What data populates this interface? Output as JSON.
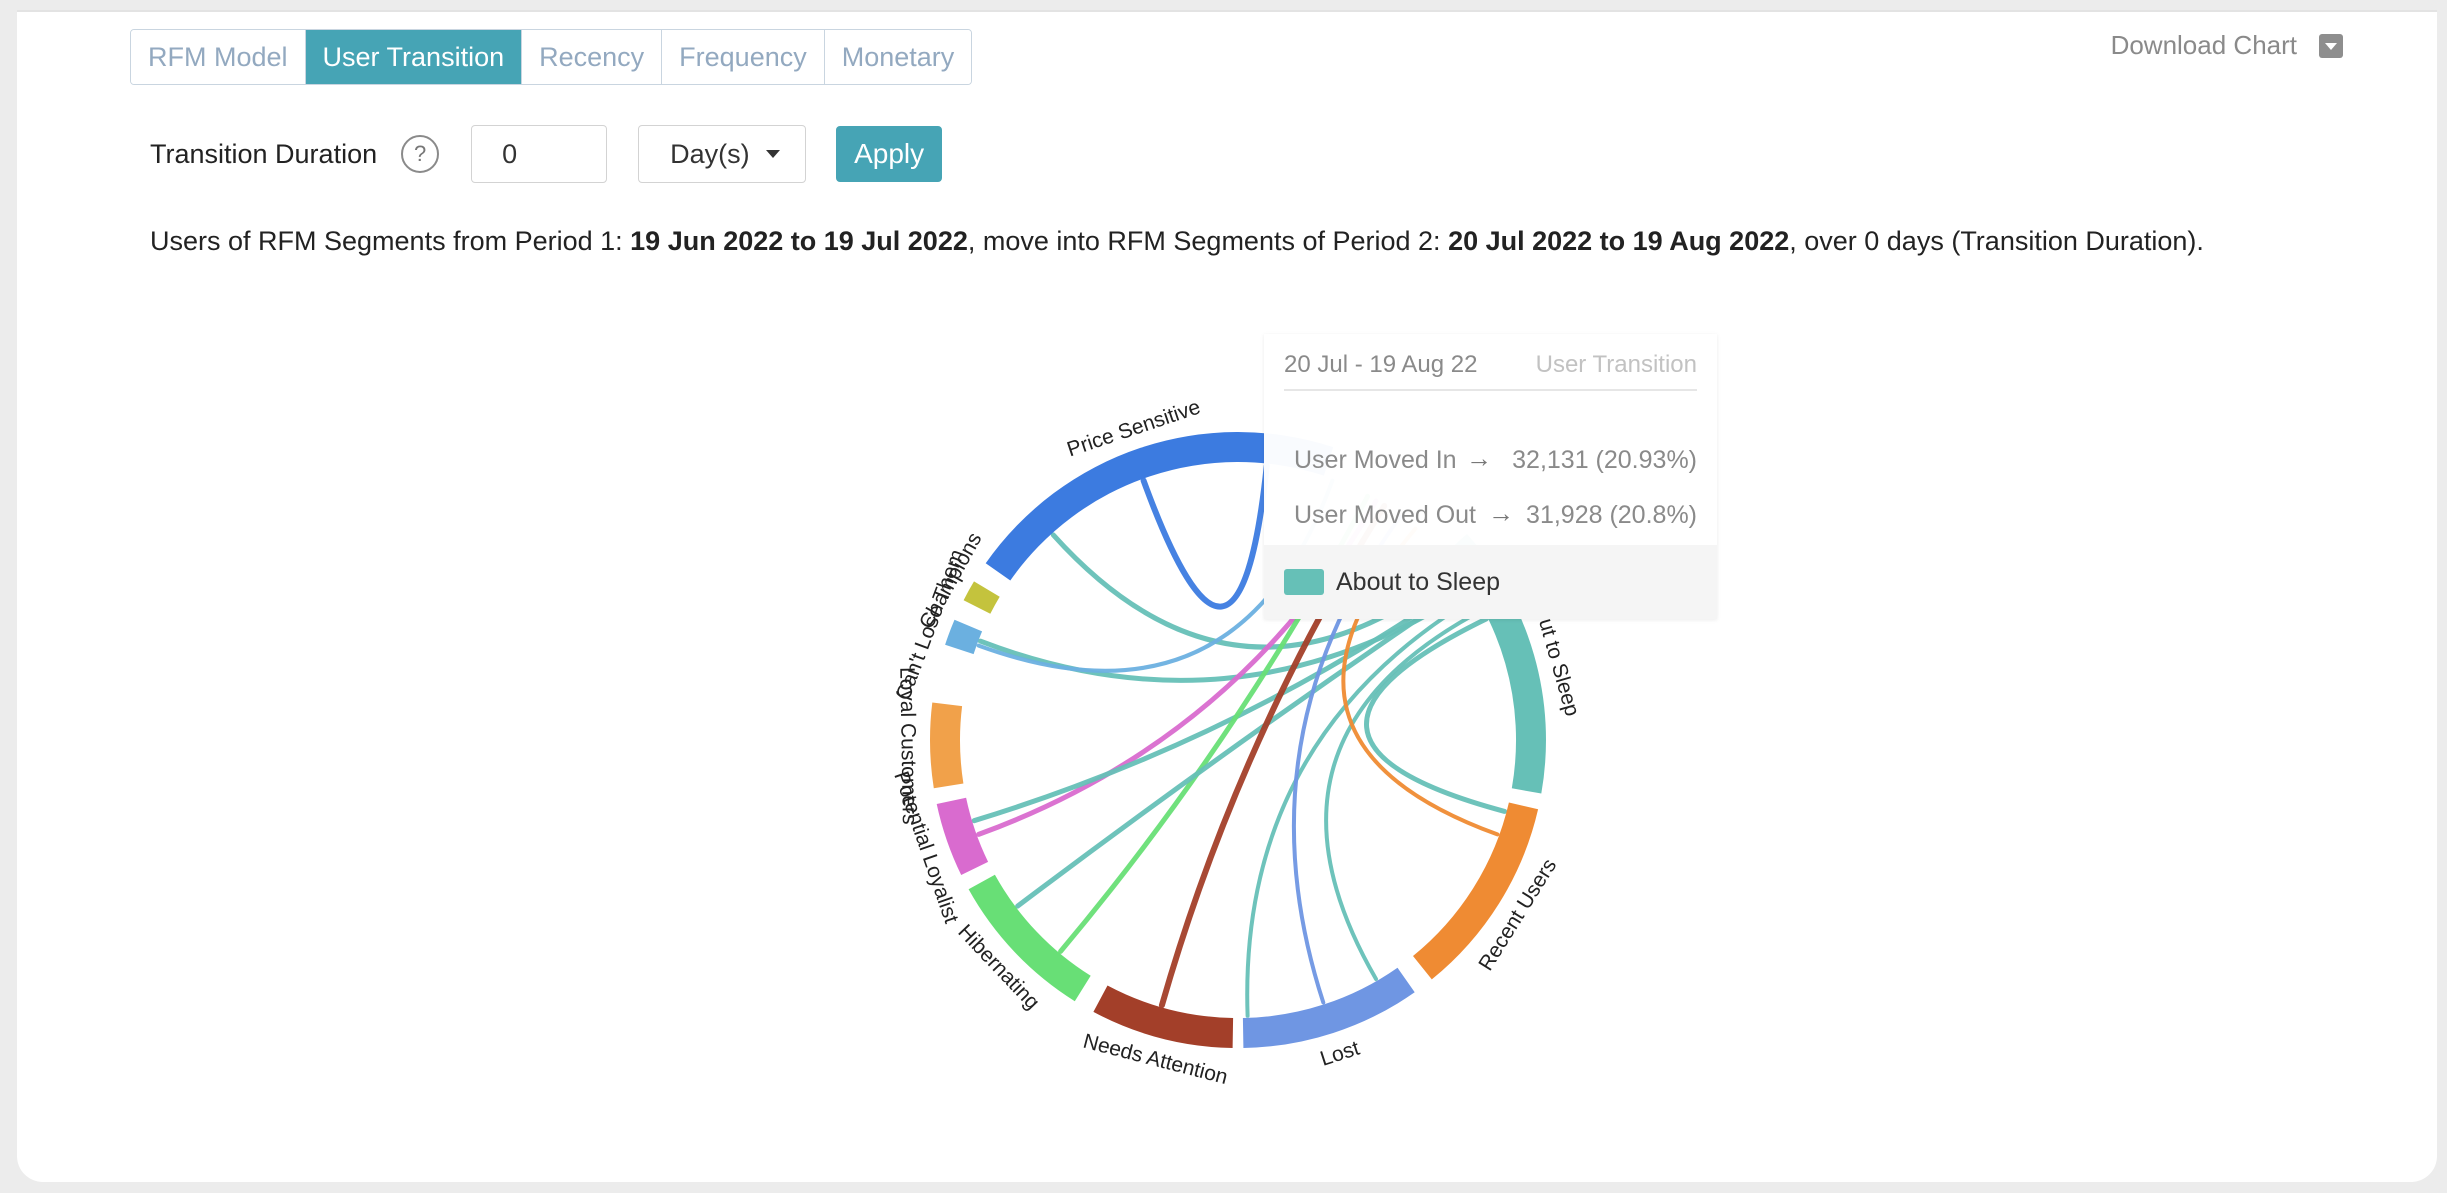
{
  "tabs": [
    {
      "label": "RFM Model",
      "active": false
    },
    {
      "label": "User Transition",
      "active": true
    },
    {
      "label": "Recency",
      "active": false
    },
    {
      "label": "Frequency",
      "active": false
    },
    {
      "label": "Monetary",
      "active": false
    }
  ],
  "download_label": "Download Chart",
  "controls": {
    "duration_label": "Transition Duration",
    "help_glyph": "?",
    "duration_value": "0",
    "unit_selected": "Day(s)",
    "apply_label": "Apply"
  },
  "description": {
    "prefix": "Users of RFM Segments from Period 1: ",
    "period1": "19 Jun 2022 to 19 Jul 2022",
    "middle": ", move into RFM Segments of Period 2: ",
    "period2": "20 Jul 2022 to 19 Aug 2022",
    "suffix": ", over 0 days (Transition Duration)."
  },
  "tooltip": {
    "date_range": "20 Jul - 19 Aug 22",
    "tag": "User Transition",
    "moved_in_label": "User Moved In",
    "moved_in_value": "32,131 (20.93%)",
    "moved_out_label": "User Moved Out",
    "moved_out_value": "31,928 (20.8%)",
    "segment": "About to Sleep",
    "segment_color": "#66c0b7"
  },
  "chart_data": {
    "type": "chord",
    "segments": [
      {
        "name": "Price Sensitive",
        "color": "#3c7be0",
        "start_deg": 305,
        "end_deg": 18
      },
      {
        "name": "About to Sleep",
        "color": "#66c0b7",
        "start_deg": 48,
        "end_deg": 100
      },
      {
        "name": "Recent Users",
        "color": "#ef8b33",
        "start_deg": 103,
        "end_deg": 141
      },
      {
        "name": "Lost",
        "color": "#6f96e3",
        "start_deg": 145,
        "end_deg": 179
      },
      {
        "name": "Needs Attention",
        "color": "#a33f29",
        "start_deg": 181,
        "end_deg": 208
      },
      {
        "name": "Hibernating",
        "color": "#68df76",
        "start_deg": 212,
        "end_deg": 241
      },
      {
        "name": "Potential Loyalist",
        "color": "#d96bcf",
        "start_deg": 244,
        "end_deg": 258
      },
      {
        "name": "Loyal Customers",
        "color": "#f1a14a",
        "start_deg": 261,
        "end_deg": 277
      },
      {
        "name": "Can't Lose Them",
        "color": "#6bb0e0",
        "start_deg": 288,
        "end_deg": 293
      },
      {
        "name": "Champions",
        "color": "#c4c33d",
        "start_deg": 297,
        "end_deg": 301
      }
    ],
    "ribbons": [
      {
        "from_deg": 318,
        "to_deg": 52,
        "color": "#66c0b7",
        "width": 5
      },
      {
        "from_deg": 291,
        "to_deg": 57,
        "color": "#66c0b7",
        "width": 5
      },
      {
        "from_deg": 290,
        "to_deg": 20,
        "color": "#6bb0e0",
        "width": 4
      },
      {
        "from_deg": 250,
        "to_deg": 30,
        "color": "#d96bcf",
        "width": 5
      },
      {
        "from_deg": 253,
        "to_deg": 55,
        "color": "#66c0b7",
        "width": 5
      },
      {
        "from_deg": 220,
        "to_deg": 28,
        "color": "#68df76",
        "width": 5
      },
      {
        "from_deg": 233,
        "to_deg": 56,
        "color": "#66c0b7",
        "width": 5
      },
      {
        "from_deg": 196,
        "to_deg": 32,
        "color": "#a33f29",
        "width": 6
      },
      {
        "from_deg": 178,
        "to_deg": 59,
        "color": "#66c0b7",
        "width": 4
      },
      {
        "from_deg": 162,
        "to_deg": 36,
        "color": "#6f96e3",
        "width": 4
      },
      {
        "from_deg": 150,
        "to_deg": 62,
        "color": "#66c0b7",
        "width": 4
      },
      {
        "from_deg": 110,
        "to_deg": 40,
        "color": "#ef8b33",
        "width": 4
      },
      {
        "from_deg": 105,
        "to_deg": 64,
        "color": "#66c0b7",
        "width": 5
      },
      {
        "from_deg": 340,
        "to_deg": 6,
        "color": "#3c7be0",
        "width": 6
      }
    ]
  }
}
